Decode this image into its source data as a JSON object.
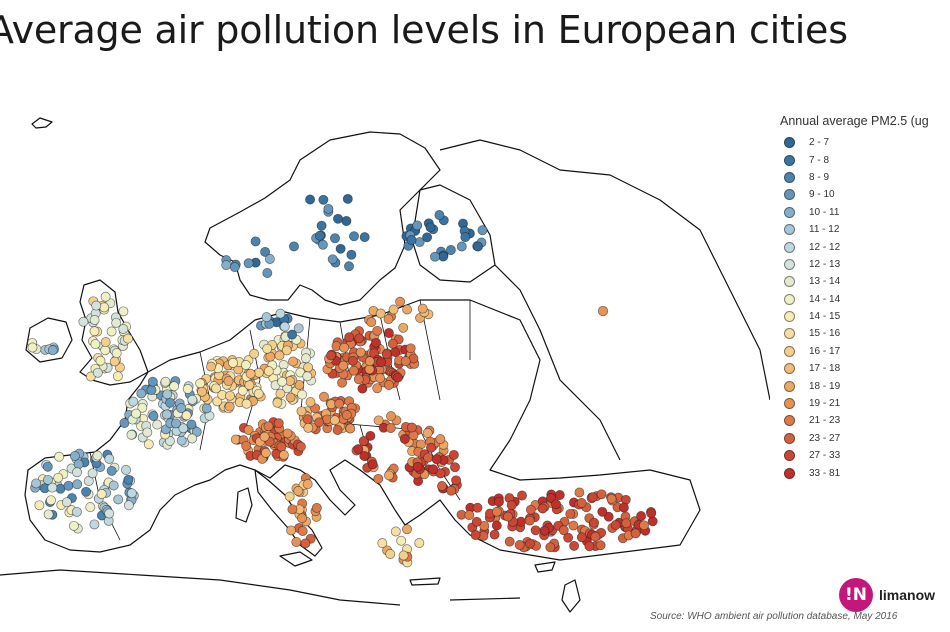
{
  "title": "Average air pollution levels in European cities",
  "legend": {
    "title": "Annual average PM2.5 (ug",
    "items": [
      {
        "label": "2 - 7",
        "color": "#2f6796"
      },
      {
        "label": "7 - 8",
        "color": "#3a74a2"
      },
      {
        "label": "8 - 9",
        "color": "#4a83ae"
      },
      {
        "label": "9 - 10",
        "color": "#6496bc"
      },
      {
        "label": "10 - 11",
        "color": "#84aecb"
      },
      {
        "label": "11 - 12",
        "color": "#a6c6d8"
      },
      {
        "label": "12 - 12",
        "color": "#bfd7de"
      },
      {
        "label": "12 - 13",
        "color": "#d3e2dc"
      },
      {
        "label": "13 - 14",
        "color": "#e4ead0"
      },
      {
        "label": "14 - 14",
        "color": "#eff0c6"
      },
      {
        "label": "14 - 15",
        "color": "#f6ecb7"
      },
      {
        "label": "15 - 16",
        "color": "#f6dfa2"
      },
      {
        "label": "16 - 17",
        "color": "#f4cf8b"
      },
      {
        "label": "17 - 18",
        "color": "#f1bc77"
      },
      {
        "label": "18 - 19",
        "color": "#eda866"
      },
      {
        "label": "19 - 21",
        "color": "#e69257"
      },
      {
        "label": "21 - 23",
        "color": "#de7a4a"
      },
      {
        "label": "23 - 27",
        "color": "#d5603e"
      },
      {
        "label": "27 - 33",
        "color": "#cc4634"
      },
      {
        "label": "33 - 81",
        "color": "#c0302b"
      }
    ]
  },
  "source": "Source: WHO ambient air pollution database, May 2016",
  "logo": {
    "mark": "!N",
    "text": "limanow"
  }
}
